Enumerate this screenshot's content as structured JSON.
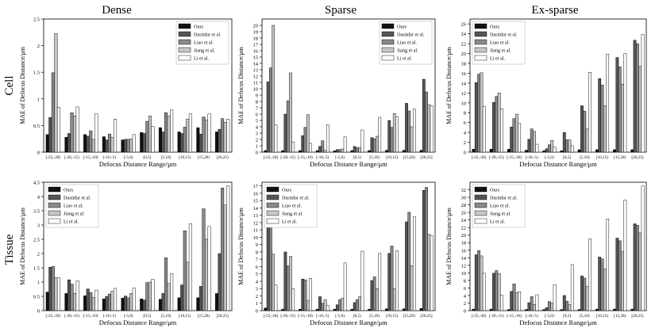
{
  "figure": {
    "column_titles": [
      "Dense",
      "Sparse",
      "Ex-sparse"
    ],
    "row_labels": [
      "Cell",
      "Tissue"
    ]
  },
  "colors": {
    "Ours": "#111111",
    "Dastidar et al.": "#555555",
    "Liao et al.": "#8a8a8a",
    "Jiang et al.": "#c6c6c6",
    "Li et al.": "#ffffff",
    "frame": "#000000"
  },
  "chart_data": [
    {
      "type": "bar",
      "row": "Cell",
      "column": "Dense",
      "xlabel": "Defocus Distance Range/μm",
      "ylabel": "MAE of Defocus Distance/μm",
      "ylim": [
        0,
        2.5
      ],
      "yticks": [
        0,
        0.5,
        1.0,
        1.5,
        2.0,
        2.5
      ],
      "legend": "top-right",
      "categories": [
        "[-25,-20)",
        "[-20,-15)",
        "[-15,-10)",
        "[-10,-5)",
        "[-5,0)",
        "[0,5)",
        "[5,10)",
        "[10,15)",
        "[15,20)",
        "[20,25)"
      ],
      "series": [
        {
          "name": "Ours",
          "values": [
            0.33,
            0.28,
            0.33,
            0.29,
            0.23,
            0.37,
            0.46,
            0.38,
            0.46,
            0.38
          ]
        },
        {
          "name": "Dastidar et al.",
          "values": [
            0.65,
            0.35,
            0.3,
            0.23,
            0.24,
            0.35,
            0.38,
            0.35,
            0.34,
            0.43
          ]
        },
        {
          "name": "Liao et al.",
          "values": [
            1.49,
            0.74,
            0.4,
            0.34,
            0.24,
            0.58,
            0.74,
            0.47,
            0.66,
            0.63
          ]
        },
        {
          "name": "Jiang et al.",
          "values": [
            2.23,
            0.68,
            0.24,
            0.28,
            0.25,
            0.68,
            0.68,
            0.62,
            0.6,
            0.56
          ]
        },
        {
          "name": "Li et al.",
          "values": [
            0.84,
            0.85,
            0.72,
            0.62,
            0.33,
            0.48,
            0.79,
            0.72,
            0.72,
            0.62
          ]
        }
      ]
    },
    {
      "type": "bar",
      "row": "Cell",
      "column": "Sparse",
      "xlabel": "Defocus Distance Range/μm",
      "ylabel": "MAE of Defocus Distance/μm",
      "ylim": [
        0,
        21
      ],
      "yticks": [
        0,
        1,
        2,
        3,
        4,
        5,
        6,
        7,
        8,
        9,
        10,
        11,
        12,
        13,
        14,
        15,
        16,
        17,
        18,
        19,
        20
      ],
      "legend": "top-right",
      "categories": [
        "[-25,-20)",
        "[-20,-15)",
        "[-15,-10)",
        "[-10,-5)",
        "[-5,0)",
        "[0,5)",
        "[5,10)",
        "[10,15)",
        "[15,20)",
        "[20,25]"
      ],
      "series": [
        {
          "name": "Ours",
          "values": [
            0.25,
            0.25,
            0.25,
            0.25,
            0.2,
            0.25,
            0.25,
            0.3,
            0.3,
            0.3
          ]
        },
        {
          "name": "Dastidar et al.",
          "values": [
            11.1,
            6.0,
            2.6,
            0.9,
            0.4,
            0.9,
            2.3,
            5.0,
            7.7,
            11.5
          ]
        },
        {
          "name": "Liao et al.",
          "values": [
            13.3,
            8.1,
            3.9,
            1.8,
            0.4,
            0.7,
            2.1,
            3.9,
            6.5,
            9.5
          ]
        },
        {
          "name": "Jiang et al.",
          "values": [
            20.0,
            12.5,
            5.9,
            0.3,
            0.5,
            0.7,
            2.5,
            6.1,
            4.0,
            7.5
          ]
        },
        {
          "name": "Li et al.",
          "values": [
            4.3,
            1.6,
            1.4,
            4.3,
            2.4,
            3.5,
            5.5,
            5.6,
            6.8,
            7.3
          ]
        }
      ]
    },
    {
      "type": "bar",
      "row": "Cell",
      "column": "Ex-sparse",
      "xlabel": "Defocus Distance Range/μm",
      "ylabel": "MAE of Defocus Distance/μm",
      "ylim": [
        0,
        27
      ],
      "yticks": [
        0,
        2,
        4,
        6,
        8,
        10,
        12,
        14,
        16,
        18,
        20,
        22,
        24,
        26
      ],
      "legend": "top-left",
      "categories": [
        "[-25,-20)",
        "[-20,-15)",
        "[-15,-10)",
        "[-10,-5)",
        "[-5,0)",
        "[0,5)",
        "[5,10)",
        "[10,15)",
        "[15,20)",
        "[20,25]"
      ],
      "series": [
        {
          "name": "Ours",
          "values": [
            0.6,
            0.6,
            0.6,
            0.4,
            0.3,
            0.3,
            0.5,
            0.5,
            0.5,
            0.5
          ]
        },
        {
          "name": "Dastidar et al.",
          "values": [
            14.1,
            10.1,
            5.1,
            2.6,
            0.7,
            4.0,
            9.4,
            14.9,
            19.2,
            22.7
          ]
        },
        {
          "name": "Liao et al.",
          "values": [
            15.8,
            11.3,
            6.8,
            4.7,
            1.5,
            2.5,
            8.3,
            13.6,
            17.3,
            22.0
          ]
        },
        {
          "name": "Jiang et al.",
          "values": [
            16.1,
            12.0,
            7.7,
            4.2,
            2.4,
            2.5,
            4.7,
            9.4,
            13.8,
            17.4
          ]
        },
        {
          "name": "Li et al.",
          "values": [
            9.3,
            8.8,
            5.8,
            1.6,
            1.0,
            1.3,
            16.2,
            19.9,
            20.0,
            23.9
          ]
        }
      ]
    },
    {
      "type": "bar",
      "row": "Tissue",
      "column": "Dense",
      "xlabel": "Defocus Distance Range/μm",
      "ylabel": "MAE of Defocus Distance/μm",
      "ylim": [
        0,
        4.5
      ],
      "yticks": [
        0,
        0.5,
        1.0,
        1.5,
        2.0,
        2.5,
        3.0,
        3.5,
        4.0,
        4.5
      ],
      "legend": "top-left",
      "categories": [
        "[-25,-20)",
        "[-20,-15)",
        "[-15,-10)",
        "[-10,-5)",
        "[-5,0)",
        "[0,5)",
        "[5,10)",
        "[10,15)",
        "[15,20)",
        "[20,25]"
      ],
      "series": [
        {
          "name": "Ours",
          "values": [
            0.65,
            0.6,
            0.52,
            0.41,
            0.44,
            0.41,
            0.4,
            0.45,
            0.45,
            0.6
          ]
        },
        {
          "name": "Dastidar et al.",
          "values": [
            1.52,
            1.08,
            0.76,
            0.5,
            0.51,
            0.37,
            0.6,
            0.9,
            0.85,
            2.0
          ]
        },
        {
          "name": "Liao et al.",
          "values": [
            1.55,
            0.93,
            0.63,
            0.58,
            0.45,
            0.98,
            1.85,
            2.8,
            3.57,
            4.3
          ]
        },
        {
          "name": "Jiang et al.",
          "values": [
            1.15,
            0.6,
            0.46,
            0.68,
            0.6,
            1.0,
            0.95,
            1.7,
            2.5,
            3.7
          ]
        },
        {
          "name": "Li et al.",
          "values": [
            1.15,
            1.05,
            0.72,
            0.78,
            0.79,
            1.1,
            1.3,
            3.05,
            2.95,
            4.38
          ]
        }
      ]
    },
    {
      "type": "bar",
      "row": "Tissue",
      "column": "Sparse",
      "xlabel": "Defocus Distance Range/μm",
      "ylabel": "MAE of Defocus Distance/μm",
      "ylim": [
        0,
        17.5
      ],
      "yticks": [
        0,
        1,
        2,
        3,
        4,
        5,
        6,
        7,
        8,
        9,
        10,
        11,
        12,
        13,
        14,
        15,
        16,
        17
      ],
      "legend": "top-left",
      "categories": [
        "[-25,-20)",
        "[-20,-15)",
        "[-15,-10)",
        "[-10,-5)",
        "[-5,0)",
        "[0,5)",
        "[5,10)",
        "[10,15)",
        "[15,20)",
        "[20,25]"
      ],
      "series": [
        {
          "name": "Ours",
          "values": [
            0.35,
            0.2,
            0.2,
            0.2,
            0.2,
            0.2,
            0.2,
            0.25,
            0.25,
            0.3
          ]
        },
        {
          "name": "Dastidar et al.",
          "values": [
            11.8,
            8.0,
            4.3,
            1.9,
            0.8,
            1.1,
            4.1,
            7.8,
            12.1,
            16.4
          ]
        },
        {
          "name": "Liao et al.",
          "values": [
            11.5,
            6.1,
            4.2,
            1.0,
            1.5,
            1.5,
            4.6,
            8.8,
            13.4,
            16.8
          ]
        },
        {
          "name": "Jiang et al.",
          "values": [
            7.7,
            7.4,
            1.4,
            1.5,
            1.7,
            1.9,
            3.0,
            3.0,
            6.1,
            10.4
          ]
        },
        {
          "name": "Li et al.",
          "values": [
            3.5,
            3.0,
            4.4,
            0.7,
            6.5,
            8.1,
            7.8,
            8.2,
            12.8,
            10.2
          ]
        }
      ]
    },
    {
      "type": "bar",
      "row": "Tissue",
      "column": "Ex-sparse",
      "xlabel": "Defocus Distance Range/μm",
      "ylabel": "MAE of Defocus Distance/μm",
      "ylim": [
        0,
        34
      ],
      "yticks": [
        0,
        2,
        4,
        6,
        8,
        10,
        12,
        14,
        16,
        18,
        20,
        22,
        24,
        26,
        28,
        30,
        32
      ],
      "legend": "top-left",
      "categories": [
        "[-25,-20)",
        "[-20,-15)",
        "[-15,-10)",
        "[-10,-5)",
        "[-5,0)",
        "[0,5)",
        "[5,10)",
        "[10,15)",
        "[15,20)",
        "[20,25]"
      ],
      "series": [
        {
          "name": "Ours",
          "values": [
            0.4,
            0.4,
            0.3,
            0.3,
            0.3,
            0.3,
            0.3,
            0.4,
            0.4,
            0.4
          ]
        },
        {
          "name": "Dastidar et al.",
          "values": [
            14.8,
            9.9,
            5.1,
            2.1,
            0.8,
            4.0,
            9.2,
            14.2,
            19.2,
            23.0
          ]
        },
        {
          "name": "Liao et al.",
          "values": [
            15.9,
            10.6,
            7.1,
            3.7,
            2.4,
            2.5,
            8.6,
            13.7,
            18.5,
            22.6
          ]
        },
        {
          "name": "Jiang et al.",
          "values": [
            14.5,
            9.8,
            4.8,
            1.6,
            2.0,
            1.6,
            6.4,
            11.0,
            15.6,
            20.6
          ]
        },
        {
          "name": "Li et al.",
          "values": [
            9.9,
            4.1,
            5.0,
            4.2,
            6.9,
            12.2,
            19.0,
            24.3,
            29.3,
            33.0
          ]
        }
      ]
    }
  ]
}
